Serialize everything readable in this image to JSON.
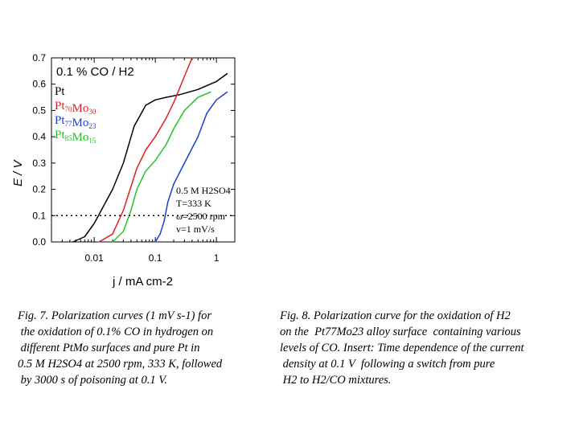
{
  "chart_data": {
    "type": "line",
    "title": "0.1 % CO / H2",
    "xlabel": "j / mA cm-2",
    "ylabel": "E / V",
    "xscale": "log",
    "xlim": [
      0.002,
      2
    ],
    "ylim": [
      0,
      0.7
    ],
    "x_ticks": [
      {
        "value": 0.01,
        "label": "0.01"
      },
      {
        "value": 0.1,
        "label": "0.1"
      },
      {
        "value": 1,
        "label": "1"
      }
    ],
    "y_ticks": [
      {
        "value": 0.0,
        "label": "0.0"
      },
      {
        "value": 0.1,
        "label": "0.1"
      },
      {
        "value": 0.2,
        "label": "0.2"
      },
      {
        "value": 0.3,
        "label": "0.3"
      },
      {
        "value": 0.4,
        "label": "0.4"
      },
      {
        "value": 0.5,
        "label": "0.5"
      },
      {
        "value": 0.6,
        "label": "0.6"
      },
      {
        "value": 0.7,
        "label": "0.7"
      }
    ],
    "grid": false,
    "legend_position": "top-left",
    "series": [
      {
        "name": "Pt",
        "color": "#000000",
        "points": [
          [
            0.0045,
            0.0
          ],
          [
            0.007,
            0.02
          ],
          [
            0.01,
            0.07
          ],
          [
            0.02,
            0.2
          ],
          [
            0.03,
            0.3
          ],
          [
            0.045,
            0.44
          ],
          [
            0.07,
            0.52
          ],
          [
            0.1,
            0.54
          ],
          [
            0.15,
            0.55
          ],
          [
            0.25,
            0.56
          ],
          [
            0.5,
            0.58
          ],
          [
            1.0,
            0.61
          ],
          [
            1.5,
            0.64
          ]
        ]
      },
      {
        "name": "Pt70Mo30",
        "color": "#e02020",
        "points": [
          [
            0.012,
            0.0
          ],
          [
            0.02,
            0.03
          ],
          [
            0.03,
            0.12
          ],
          [
            0.05,
            0.28
          ],
          [
            0.07,
            0.35
          ],
          [
            0.1,
            0.4
          ],
          [
            0.15,
            0.47
          ],
          [
            0.2,
            0.53
          ],
          [
            0.3,
            0.63
          ],
          [
            0.4,
            0.7
          ]
        ]
      },
      {
        "name": "Pt77Mo23",
        "color": "#1a3fd0",
        "points": [
          [
            0.1,
            0.0
          ],
          [
            0.12,
            0.03
          ],
          [
            0.14,
            0.08
          ],
          [
            0.16,
            0.15
          ],
          [
            0.2,
            0.22
          ],
          [
            0.3,
            0.3
          ],
          [
            0.5,
            0.4
          ],
          [
            0.7,
            0.49
          ],
          [
            1.0,
            0.54
          ],
          [
            1.5,
            0.57
          ]
        ]
      },
      {
        "name": "Pt85Mo15",
        "color": "#22c522",
        "points": [
          [
            0.02,
            0.0
          ],
          [
            0.03,
            0.04
          ],
          [
            0.04,
            0.12
          ],
          [
            0.05,
            0.2
          ],
          [
            0.07,
            0.27
          ],
          [
            0.1,
            0.31
          ],
          [
            0.15,
            0.37
          ],
          [
            0.2,
            0.43
          ],
          [
            0.3,
            0.5
          ],
          [
            0.5,
            0.55
          ],
          [
            0.8,
            0.57
          ]
        ]
      }
    ],
    "legend": [
      {
        "base": "Pt",
        "sub": "",
        "base2": "",
        "sub2": "",
        "color": "#000000"
      },
      {
        "base": "Pt",
        "sub": "70",
        "base2": "Mo",
        "sub2": "30",
        "color": "#e02020"
      },
      {
        "base": "Pt",
        "sub": "77",
        "base2": "Mo",
        "sub2": "23",
        "color": "#1a3fd0"
      },
      {
        "base": "Pt",
        "sub": "85",
        "base2": "Mo",
        "sub2": "15",
        "color": "#22c522"
      }
    ],
    "reference_line": {
      "value": 0.1,
      "style": "dotted"
    },
    "conditions": [
      "0.5 M H2SO4",
      "T=333 K",
      "ω=2500 rpm",
      "v=1 mV/s"
    ]
  },
  "captions": {
    "fig7": {
      "line1": "Fig. 7. Polarization curves (1 mV s-1) for",
      "line2": " the oxidation of 0.1% CO in hydrogen on",
      "line3": " different PtMo surfaces and pure Pt in",
      "line4": "0.5 M H2SO4 at 2500 rpm, 333 K, followed",
      "line5": " by 3000 s of poisoning at 0.1 V."
    },
    "fig8": {
      "line1": "Fig. 8. Polarization curve for the oxidation of H2",
      "line2": "on the  Pt77Mo23 alloy surface  containing various",
      "line3": "levels of CO. Insert: Time dependence of the current",
      "line4": " density at 0.1 V  following a switch from pure",
      "line5": " H2 to H2/CO mixtures."
    }
  }
}
